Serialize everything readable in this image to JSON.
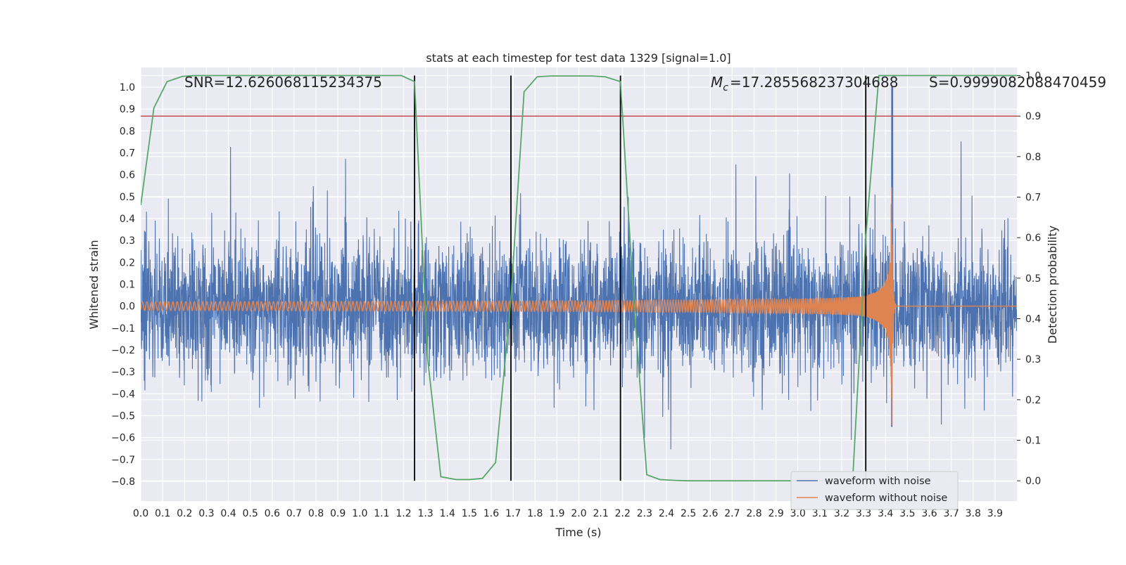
{
  "chart_data": {
    "type": "line",
    "title": "stats at each timestep for test data 1329 [signal=1.0]",
    "xlabel": "Time (s)",
    "ylabel_left": "Whitened strain",
    "ylabel_right": "Detection probability",
    "xlim": [
      0.0,
      4.0
    ],
    "ylim_left": [
      -0.89,
      1.09
    ],
    "ylim_right": [
      -0.05,
      1.02
    ],
    "x_ticks": [
      0.0,
      0.1,
      0.2,
      0.3,
      0.4,
      0.5,
      0.6,
      0.7,
      0.8,
      0.9,
      1.0,
      1.1,
      1.2,
      1.3,
      1.4,
      1.5,
      1.6,
      1.7,
      1.8,
      1.9,
      2.0,
      2.1,
      2.2,
      2.3,
      2.4,
      2.5,
      2.6,
      2.7,
      2.8,
      2.9,
      3.0,
      3.1,
      3.2,
      3.3,
      3.4,
      3.5,
      3.6,
      3.7,
      3.8,
      3.9
    ],
    "y_ticks_left": [
      -0.8,
      -0.7,
      -0.6,
      -0.5,
      -0.4,
      -0.3,
      -0.2,
      -0.1,
      0.0,
      0.1,
      0.2,
      0.3,
      0.4,
      0.5,
      0.6,
      0.7,
      0.8,
      0.9,
      1.0
    ],
    "y_ticks_right": [
      0.0,
      0.1,
      0.2,
      0.3,
      0.4,
      0.5,
      0.6,
      0.7,
      0.8,
      0.9,
      1.0
    ],
    "grid": true,
    "legend_position": "lower right",
    "annotations": {
      "snr": "SNR=12.626068115234375",
      "mc": "=17.285568237304688",
      "s": "S=0.9999082088470459"
    },
    "series": [
      {
        "name": "waveform with noise",
        "color": "#4c72b0",
        "description_values": {
          "typical_range": [
            -0.35,
            0.4
          ],
          "noise_sigma": 0.17
        }
      },
      {
        "name": "waveform without noise",
        "color": "#dd8452",
        "chirp": {
          "start_amplitude": 0.02,
          "merger_time": 3.43,
          "peak_max": 0.55,
          "peak_min": -0.55,
          "ringdown_end": 3.45
        }
      },
      {
        "name": "",
        "axis": "right",
        "color": "#55a868",
        "x": [
          0.0,
          0.06,
          0.12,
          0.19,
          0.25,
          0.31,
          0.37,
          0.44,
          0.5,
          0.56,
          0.62,
          0.69,
          0.75,
          0.81,
          0.87,
          0.94,
          1.0,
          1.06,
          1.12,
          1.19,
          1.25,
          1.31,
          1.37,
          1.44,
          1.5,
          1.56,
          1.62,
          1.69,
          1.75,
          1.81,
          1.87,
          1.94,
          2.0,
          2.06,
          2.12,
          2.19,
          2.25,
          2.31,
          2.37,
          2.44,
          2.5,
          2.56,
          2.62,
          2.69,
          2.75,
          2.81,
          2.87,
          2.94,
          3.0,
          3.06,
          3.12,
          3.19,
          3.25,
          3.31,
          3.37,
          3.44,
          3.5,
          3.56,
          3.62,
          3.69,
          3.75,
          3.81,
          3.87,
          3.94,
          4.0
        ],
        "y": [
          0.68,
          0.92,
          0.985,
          0.998,
          1.0,
          1.0,
          1.0,
          1.0,
          1.0,
          1.0,
          1.0,
          1.0,
          1.0,
          1.0,
          1.0,
          1.0,
          1.0,
          1.0,
          1.0,
          1.0,
          0.985,
          0.3,
          0.01,
          0.003,
          0.003,
          0.006,
          0.045,
          0.45,
          0.96,
          0.997,
          0.999,
          0.999,
          0.999,
          0.999,
          0.997,
          0.985,
          0.45,
          0.015,
          0.003,
          0.001,
          0.0,
          0.0,
          0.0,
          0.0,
          0.0,
          0.0,
          0.0,
          0.0,
          0.0,
          0.0,
          0.0,
          0.0,
          0.0,
          0.6,
          1.0,
          1.0,
          1.0,
          1.0,
          1.0,
          1.0,
          1.0,
          1.0,
          1.0,
          1.0,
          1.0
        ]
      }
    ],
    "threshold_line": {
      "axis": "right",
      "value": 0.9,
      "color": "#c44e52"
    },
    "detection_markers": {
      "color": "#000000",
      "x": [
        1.25,
        1.69,
        2.19,
        3.31
      ]
    }
  }
}
